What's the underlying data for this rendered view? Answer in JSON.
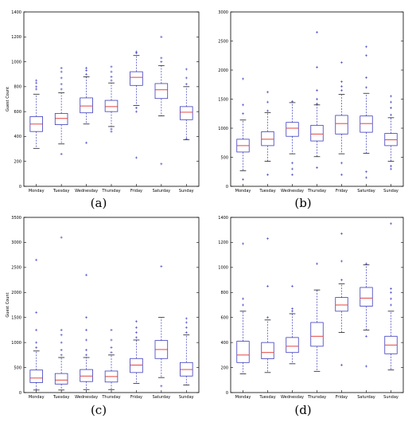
{
  "chart_data": [
    {
      "type": "box",
      "caption": "(a)",
      "ylabel": "Guest Count",
      "ylim": [
        0,
        1400
      ],
      "yticks": [
        0,
        200,
        400,
        600,
        800,
        1000,
        1200,
        1400
      ],
      "categories": [
        "Monday",
        "Tuesday",
        "Wednesday",
        "Thursday",
        "Friday",
        "Saturday",
        "Sunday"
      ],
      "series_color": "#3b3bbf",
      "median_color": "#e0302b",
      "boxes": [
        {
          "q1": 440,
          "median": 500,
          "q3": 560,
          "whisker_low": 305,
          "whisker_high": 740,
          "outliers": [
            780,
            800,
            830,
            850
          ]
        },
        {
          "q1": 495,
          "median": 545,
          "q3": 585,
          "whisker_low": 340,
          "whisker_high": 750,
          "outliers": [
            260,
            780,
            820,
            870,
            920,
            950
          ]
        },
        {
          "q1": 590,
          "median": 645,
          "q3": 710,
          "whisker_low": 500,
          "whisker_high": 880,
          "outliers": [
            350,
            900,
            930,
            950
          ]
        },
        {
          "q1": 600,
          "median": 640,
          "q3": 690,
          "whisker_low": 480,
          "whisker_high": 830,
          "outliers": [
            440,
            460,
            850,
            880,
            920,
            960
          ]
        },
        {
          "q1": 810,
          "median": 875,
          "q3": 920,
          "whisker_low": 650,
          "whisker_high": 1050,
          "outliers": [
            230,
            600,
            630,
            1070,
            1080
          ]
        },
        {
          "q1": 705,
          "median": 775,
          "q3": 825,
          "whisker_low": 565,
          "whisker_high": 970,
          "outliers": [
            180,
            1000,
            1030,
            1200
          ]
        },
        {
          "q1": 535,
          "median": 595,
          "q3": 640,
          "whisker_low": 375,
          "whisker_high": 800,
          "outliers": [
            380,
            820,
            870,
            940
          ]
        }
      ]
    },
    {
      "type": "box",
      "caption": "(b)",
      "ylabel": "",
      "ylim": [
        0,
        3000
      ],
      "yticks": [
        0,
        500,
        1000,
        1500,
        2000,
        2500,
        3000
      ],
      "categories": [
        "Monday",
        "Tuesday",
        "Wednesday",
        "Thursday",
        "Friday",
        "Saturday",
        "Sunday"
      ],
      "series_color": "#3b3bbf",
      "median_color": "#e0302b",
      "boxes": [
        {
          "q1": 590,
          "median": 700,
          "q3": 810,
          "whisker_low": 270,
          "whisker_high": 1140,
          "outliers": [
            120,
            1250,
            1400,
            1850
          ]
        },
        {
          "q1": 700,
          "median": 810,
          "q3": 940,
          "whisker_low": 430,
          "whisker_high": 1270,
          "outliers": [
            200,
            1300,
            1450,
            1620
          ]
        },
        {
          "q1": 860,
          "median": 1000,
          "q3": 1100,
          "whisker_low": 560,
          "whisker_high": 1440,
          "outliers": [
            200,
            300,
            400,
            1460
          ]
        },
        {
          "q1": 780,
          "median": 900,
          "q3": 1050,
          "whisker_low": 510,
          "whisker_high": 1400,
          "outliers": [
            320,
            1420,
            1500,
            1650,
            2050,
            2650
          ]
        },
        {
          "q1": 900,
          "median": 1080,
          "q3": 1220,
          "whisker_low": 560,
          "whisker_high": 1580,
          "outliers": [
            200,
            400,
            1650,
            1720,
            1800,
            2130
          ]
        },
        {
          "q1": 930,
          "median": 1080,
          "q3": 1210,
          "whisker_low": 570,
          "whisker_high": 1600,
          "outliers": [
            150,
            250,
            1700,
            1870,
            2250,
            2400
          ]
        },
        {
          "q1": 700,
          "median": 800,
          "q3": 910,
          "whisker_low": 430,
          "whisker_high": 1180,
          "outliers": [
            300,
            350,
            1230,
            1350,
            1450,
            1550
          ]
        }
      ]
    },
    {
      "type": "box",
      "caption": "(c)",
      "ylabel": "Guest Count",
      "ylim": [
        0,
        3500
      ],
      "yticks": [
        0,
        500,
        1000,
        1500,
        2000,
        2500,
        3000,
        3500
      ],
      "categories": [
        "Monday",
        "Tuesday",
        "Wednesday",
        "Thursday",
        "Friday",
        "Saturday",
        "Sunday"
      ],
      "series_color": "#3b3bbf",
      "median_color": "#e0302b",
      "boxes": [
        {
          "q1": 200,
          "median": 290,
          "q3": 450,
          "whisker_low": 50,
          "whisker_high": 830,
          "outliers": [
            900,
            1000,
            1250,
            1600,
            2650
          ]
        },
        {
          "q1": 170,
          "median": 250,
          "q3": 380,
          "whisker_low": 50,
          "whisker_high": 700,
          "outliers": [
            750,
            850,
            1000,
            1150,
            1250,
            3100
          ]
        },
        {
          "q1": 220,
          "median": 330,
          "q3": 460,
          "whisker_low": 60,
          "whisker_high": 700,
          "outliers": [
            750,
            850,
            1050,
            1250,
            1500,
            2350
          ]
        },
        {
          "q1": 210,
          "median": 320,
          "q3": 430,
          "whisker_low": 60,
          "whisker_high": 750,
          "outliers": [
            800,
            900,
            1050,
            1250
          ]
        },
        {
          "q1": 400,
          "median": 550,
          "q3": 680,
          "whisker_low": 180,
          "whisker_high": 1050,
          "outliers": [
            1100,
            1200,
            1300,
            1420
          ]
        },
        {
          "q1": 680,
          "median": 860,
          "q3": 1040,
          "whisker_low": 300,
          "whisker_high": 1500,
          "outliers": [
            130,
            2520
          ]
        },
        {
          "q1": 330,
          "median": 460,
          "q3": 600,
          "whisker_low": 150,
          "whisker_high": 1150,
          "outliers": [
            1200,
            1300,
            1400,
            1480
          ]
        }
      ]
    },
    {
      "type": "box",
      "caption": "(d)",
      "ylabel": "",
      "ylim": [
        0,
        1400
      ],
      "yticks": [
        0,
        200,
        400,
        600,
        800,
        1000,
        1200,
        1400
      ],
      "categories": [
        "Monday",
        "Tuesday",
        "Wednesday",
        "Thursday",
        "Friday",
        "Saturday",
        "Sunday"
      ],
      "series_color": "#3b3bbf",
      "median_color": "#e0302b",
      "boxes": [
        {
          "q1": 240,
          "median": 300,
          "q3": 410,
          "whisker_low": 150,
          "whisker_high": 650,
          "outliers": [
            700,
            750,
            1190
          ]
        },
        {
          "q1": 270,
          "median": 320,
          "q3": 400,
          "whisker_low": 160,
          "whisker_high": 580,
          "outliers": [
            600,
            850,
            1230
          ]
        },
        {
          "q1": 320,
          "median": 370,
          "q3": 440,
          "whisker_low": 230,
          "whisker_high": 630,
          "outliers": [
            650,
            670,
            850
          ]
        },
        {
          "q1": 370,
          "median": 450,
          "q3": 560,
          "whisker_low": 170,
          "whisker_high": 820,
          "outliers": [
            1030
          ]
        },
        {
          "q1": 650,
          "median": 700,
          "q3": 760,
          "whisker_low": 480,
          "whisker_high": 870,
          "outliers": [
            220,
            900,
            1050,
            1270
          ]
        },
        {
          "q1": 690,
          "median": 755,
          "q3": 840,
          "whisker_low": 500,
          "whisker_high": 1020,
          "outliers": [
            210,
            450,
            1030
          ]
        },
        {
          "q1": 310,
          "median": 380,
          "q3": 450,
          "whisker_low": 180,
          "whisker_high": 650,
          "outliers": [
            700,
            750,
            800,
            830,
            1350
          ]
        }
      ]
    }
  ]
}
